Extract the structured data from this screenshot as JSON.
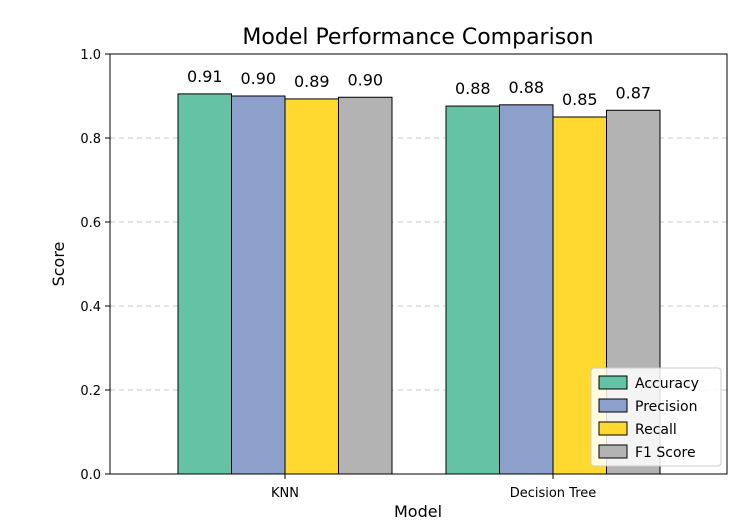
{
  "chart_data": {
    "type": "bar",
    "title": "Model Performance Comparison",
    "xlabel": "Model",
    "ylabel": "Score",
    "ylim": [
      0,
      1.0
    ],
    "yticks": [
      "0.0",
      "0.2",
      "0.4",
      "0.6",
      "0.8",
      "1.0"
    ],
    "ytick_values": [
      0.0,
      0.2,
      0.4,
      0.6,
      0.8,
      1.0
    ],
    "grid": "y-dashed",
    "legend_position": "lower-right",
    "categories": [
      "KNN",
      "Decision Tree"
    ],
    "series": [
      {
        "name": "Accuracy",
        "color": "#66c2a5",
        "values": [
          0.905,
          0.876
        ],
        "labels": [
          "0.91",
          "0.88"
        ]
      },
      {
        "name": "Precision",
        "color": "#8da0cb",
        "values": [
          0.9,
          0.879
        ],
        "labels": [
          "0.90",
          "0.88"
        ]
      },
      {
        "name": "Recall",
        "color": "#ffd92f",
        "values": [
          0.893,
          0.85
        ],
        "labels": [
          "0.89",
          "0.85"
        ]
      },
      {
        "name": "F1 Score",
        "color": "#b3b3b3",
        "values": [
          0.897,
          0.866
        ],
        "labels": [
          "0.90",
          "0.87"
        ]
      }
    ]
  }
}
